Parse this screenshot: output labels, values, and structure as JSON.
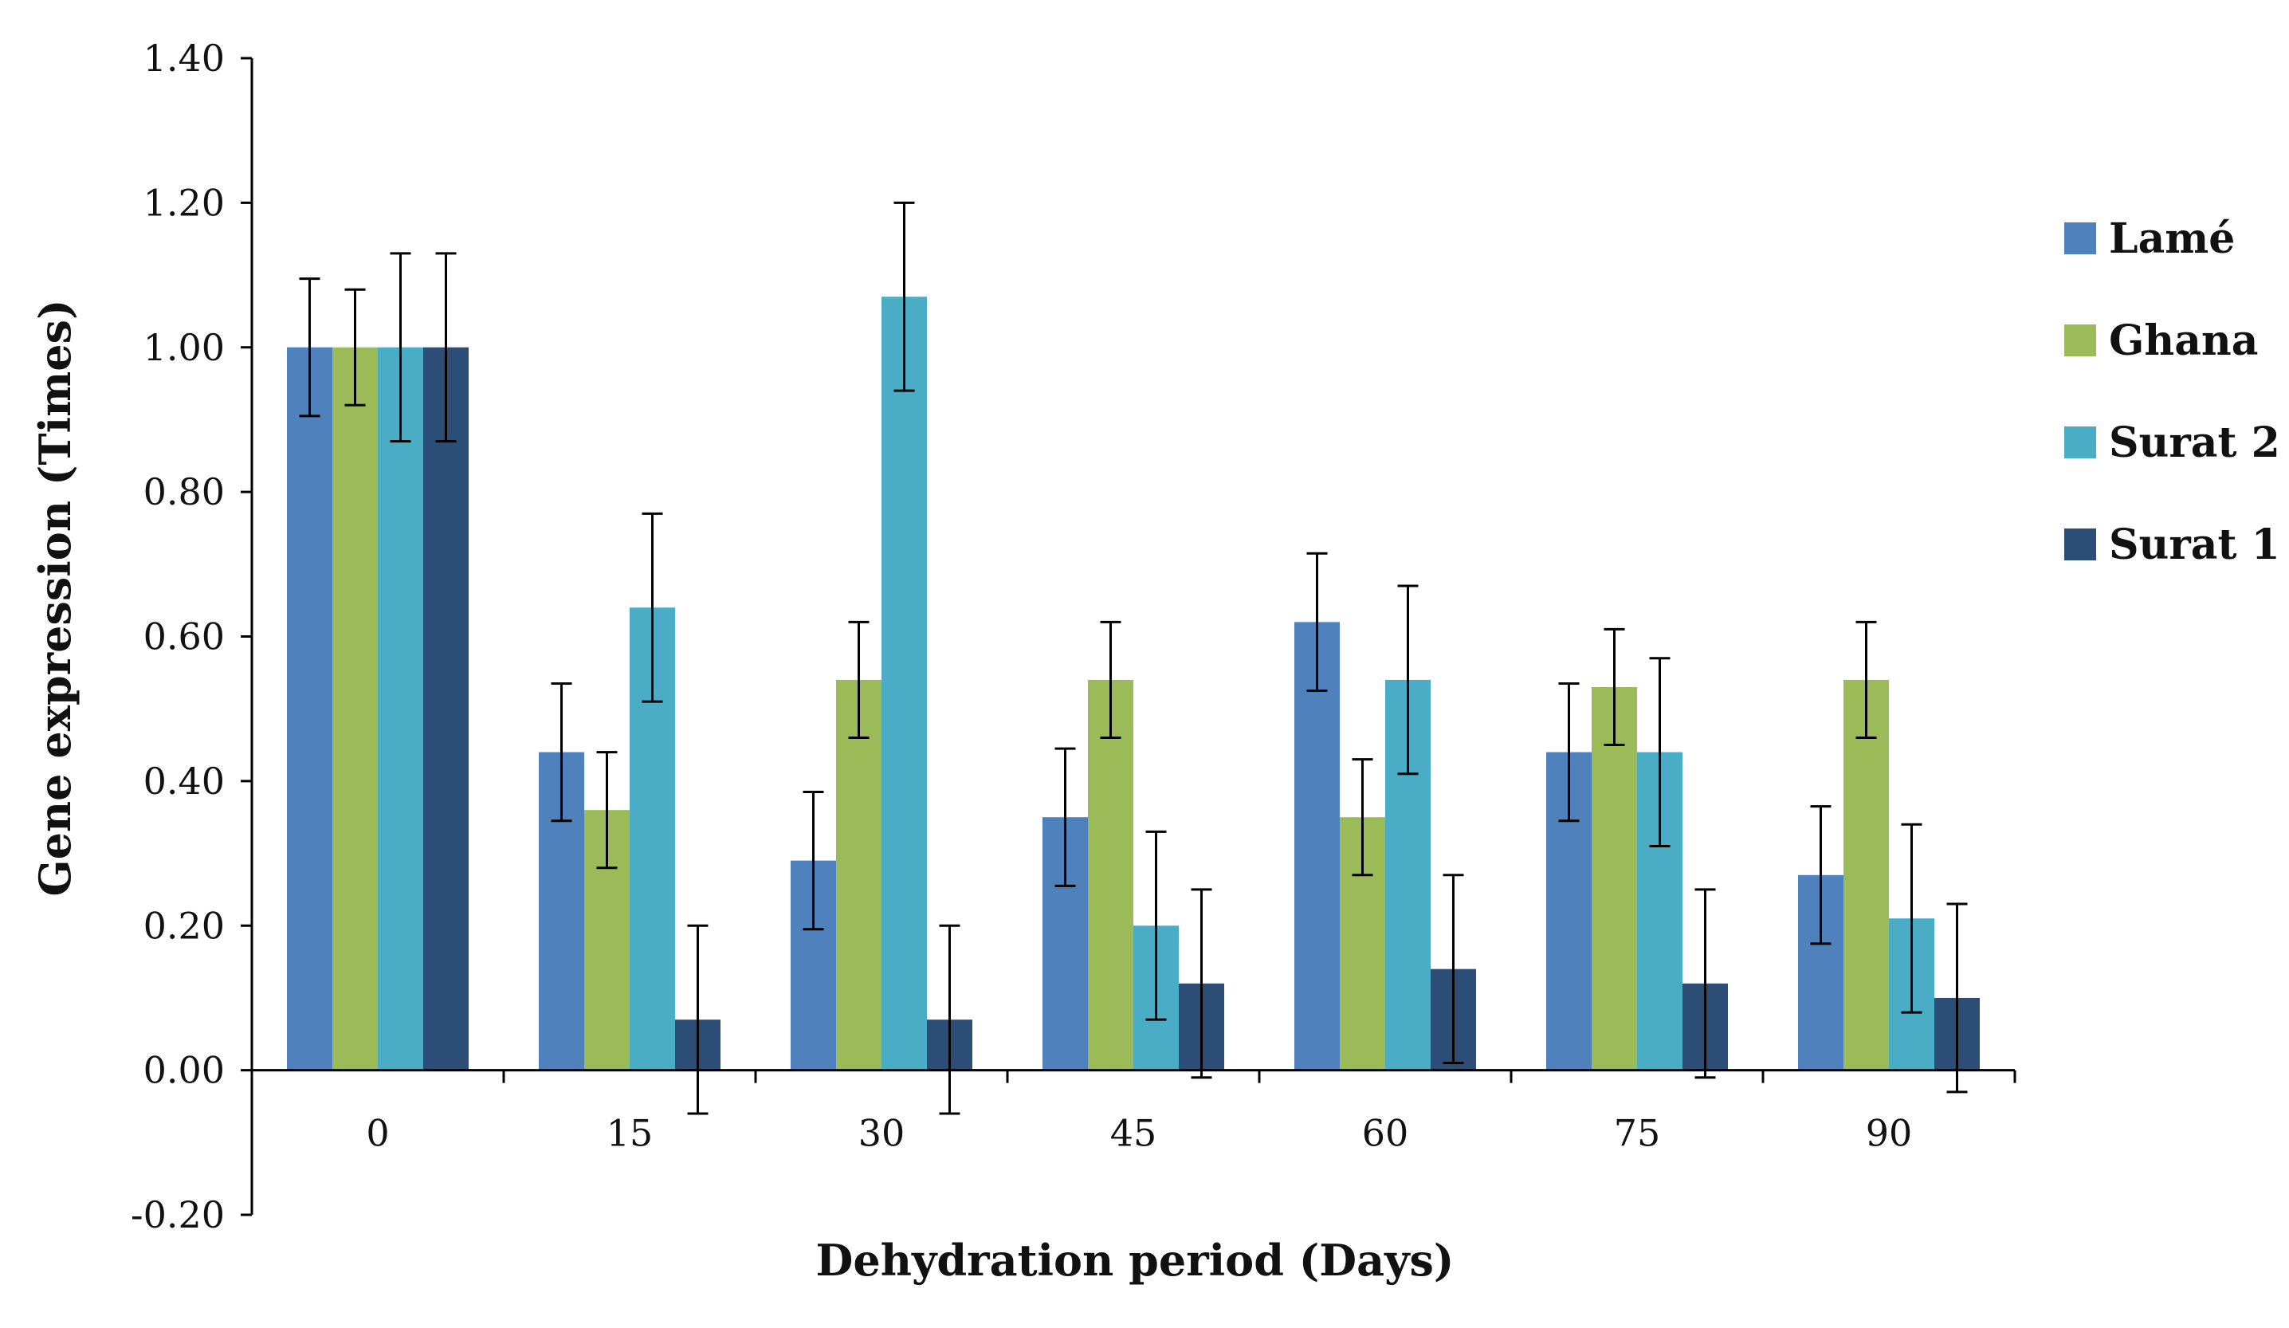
{
  "chart_data": {
    "type": "bar",
    "title": "",
    "xlabel": "Dehydration period (Days)",
    "ylabel": "Gene expression (Times)",
    "ylim": [
      -0.2,
      1.4
    ],
    "yticks": [
      "-0.20",
      "0.00",
      "0.20",
      "0.40",
      "0.60",
      "0.80",
      "1.00",
      "1.20",
      "1.40"
    ],
    "categories": [
      "0",
      "15",
      "30",
      "45",
      "60",
      "75",
      "90"
    ],
    "series": [
      {
        "name": "Lamé",
        "color": "#4f81bd",
        "values": [
          1.0,
          0.44,
          0.29,
          0.35,
          0.62,
          0.44,
          0.27
        ],
        "errors": [
          0.095,
          0.095,
          0.095,
          0.095,
          0.095,
          0.095,
          0.095
        ]
      },
      {
        "name": "Ghana",
        "color": "#9bbb59",
        "values": [
          1.0,
          0.36,
          0.54,
          0.54,
          0.35,
          0.53,
          0.54
        ],
        "errors": [
          0.08,
          0.08,
          0.08,
          0.08,
          0.08,
          0.08,
          0.08
        ]
      },
      {
        "name": "Surat 2",
        "color": "#4bacc6",
        "values": [
          1.0,
          0.64,
          1.07,
          0.2,
          0.54,
          0.44,
          0.21
        ],
        "errors": [
          0.13,
          0.13,
          0.13,
          0.13,
          0.13,
          0.13,
          0.13
        ]
      },
      {
        "name": "Surat 1",
        "color": "#2c4d75",
        "values": [
          1.0,
          0.07,
          0.07,
          0.12,
          0.14,
          0.12,
          0.1
        ],
        "errors": [
          0.13,
          0.13,
          0.13,
          0.13,
          0.13,
          0.13,
          0.13
        ]
      }
    ],
    "legend_position": "right",
    "grid": false
  }
}
